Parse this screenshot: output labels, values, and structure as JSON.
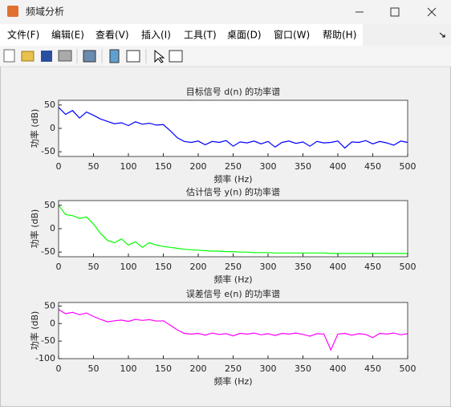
{
  "window": {
    "title": "频域分析",
    "menu": [
      "文件(F)",
      "编辑(E)",
      "查看(V)",
      "插入(I)",
      "工具(T)",
      "桌面(D)",
      "窗口(W)",
      "帮助(H)"
    ]
  },
  "chart_data": [
    {
      "type": "line",
      "title": "目标信号 d(n) 的功率谱",
      "xlabel": "频率 (Hz)",
      "ylabel": "功率 (dB)",
      "x": [
        0,
        10,
        20,
        30,
        40,
        50,
        60,
        70,
        80,
        90,
        100,
        110,
        120,
        130,
        140,
        150,
        160,
        170,
        180,
        190,
        200,
        210,
        220,
        230,
        240,
        250,
        260,
        270,
        280,
        290,
        300,
        310,
        320,
        330,
        340,
        350,
        360,
        370,
        380,
        390,
        400,
        410,
        420,
        430,
        440,
        450,
        460,
        470,
        480,
        490,
        500
      ],
      "series": [
        {
          "name": "d(n)",
          "color": "#0000ff",
          "values": [
            45,
            30,
            38,
            22,
            35,
            28,
            20,
            15,
            10,
            12,
            6,
            14,
            9,
            11,
            7,
            8,
            -5,
            -20,
            -28,
            -30,
            -27,
            -35,
            -28,
            -30,
            -26,
            -38,
            -29,
            -31,
            -27,
            -33,
            -28,
            -40,
            -30,
            -27,
            -32,
            -29,
            -38,
            -28,
            -31,
            -30,
            -27,
            -42,
            -29,
            -30,
            -26,
            -33,
            -28,
            -31,
            -36,
            -27,
            -30
          ]
        }
      ],
      "xlim": [
        0,
        500
      ],
      "xticks": [
        0,
        50,
        100,
        150,
        200,
        250,
        300,
        350,
        400,
        450,
        500
      ],
      "ylim": [
        -60,
        60
      ],
      "yticks": [
        -50,
        0,
        50
      ]
    },
    {
      "type": "line",
      "title": "估计信号 y(n) 的功率谱",
      "xlabel": "频率 (Hz)",
      "ylabel": "功率 (dB)",
      "x": [
        0,
        10,
        20,
        30,
        40,
        50,
        60,
        70,
        80,
        90,
        100,
        110,
        120,
        130,
        140,
        150,
        160,
        170,
        180,
        190,
        200,
        210,
        220,
        230,
        240,
        250,
        260,
        270,
        280,
        290,
        300,
        310,
        320,
        330,
        340,
        350,
        360,
        370,
        380,
        390,
        400,
        410,
        420,
        430,
        440,
        450,
        460,
        470,
        480,
        490,
        500
      ],
      "series": [
        {
          "name": "y(n)",
          "color": "#00ff00",
          "values": [
            50,
            30,
            28,
            22,
            25,
            10,
            -10,
            -25,
            -30,
            -22,
            -35,
            -28,
            -40,
            -30,
            -35,
            -38,
            -40,
            -42,
            -44,
            -45,
            -46,
            -47,
            -48,
            -48,
            -49,
            -49,
            -50,
            -50,
            -51,
            -51,
            -51,
            -52,
            -52,
            -52,
            -52,
            -52,
            -52,
            -52,
            -52,
            -53,
            -53,
            -53,
            -53,
            -53,
            -53,
            -53,
            -53,
            -53,
            -53,
            -53,
            -53
          ]
        }
      ],
      "xlim": [
        0,
        500
      ],
      "xticks": [
        0,
        50,
        100,
        150,
        200,
        250,
        300,
        350,
        400,
        450,
        500
      ],
      "ylim": [
        -60,
        60
      ],
      "yticks": [
        -50,
        0,
        50
      ]
    },
    {
      "type": "line",
      "title": "误差信号 e(n) 的功率谱",
      "xlabel": "频率 (Hz)",
      "ylabel": "功率 (dB)",
      "x": [
        0,
        10,
        20,
        30,
        40,
        50,
        60,
        70,
        80,
        90,
        100,
        110,
        120,
        130,
        140,
        150,
        160,
        170,
        180,
        190,
        200,
        210,
        220,
        230,
        240,
        250,
        260,
        270,
        280,
        290,
        300,
        310,
        320,
        330,
        340,
        350,
        360,
        370,
        380,
        390,
        400,
        410,
        420,
        430,
        440,
        450,
        460,
        470,
        480,
        490,
        500
      ],
      "series": [
        {
          "name": "e(n)",
          "color": "#ff00ff",
          "values": [
            40,
            28,
            32,
            25,
            30,
            20,
            12,
            5,
            8,
            10,
            6,
            12,
            9,
            11,
            7,
            8,
            -5,
            -18,
            -28,
            -30,
            -28,
            -33,
            -27,
            -31,
            -29,
            -35,
            -28,
            -30,
            -27,
            -32,
            -29,
            -34,
            -28,
            -30,
            -27,
            -31,
            -36,
            -29,
            -30,
            -75,
            -30,
            -28,
            -33,
            -29,
            -31,
            -40,
            -28,
            -30,
            -27,
            -32,
            -29
          ]
        }
      ],
      "xlim": [
        0,
        500
      ],
      "xticks": [
        0,
        50,
        100,
        150,
        200,
        250,
        300,
        350,
        400,
        450,
        500
      ],
      "ylim": [
        -100,
        60
      ],
      "yticks": [
        -100,
        -50,
        0,
        50
      ]
    }
  ]
}
